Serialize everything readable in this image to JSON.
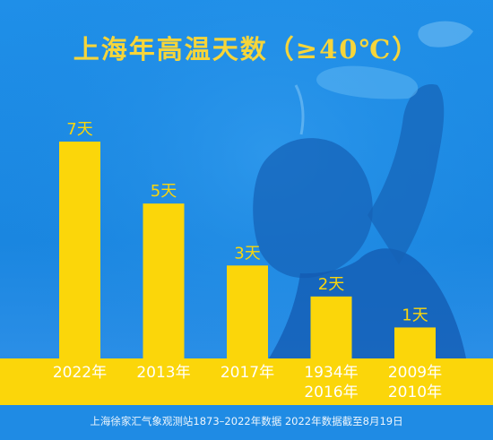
{
  "title": "上海年高温天数（≥40℃）",
  "footnote": "上海徐家汇气象观测站1873–2022年数据  2022年数据截至8月19日",
  "colors": {
    "bar": "#fbd60a",
    "background": "#1a88e0",
    "ground": "#fbd60a",
    "label": "#ffffff",
    "value_label": "#fbd60a"
  },
  "chart_data": {
    "type": "bar",
    "title": "上海年高温天数（≥40℃）",
    "categories": [
      [
        "2022年"
      ],
      [
        "2013年"
      ],
      [
        "2017年"
      ],
      [
        "1934年",
        "2016年"
      ],
      [
        "2009年",
        "2010年"
      ]
    ],
    "values": [
      7,
      5,
      3,
      2,
      1
    ],
    "value_labels": [
      "7天",
      "5天",
      "3天",
      "2天",
      "1天"
    ],
    "unit": "天",
    "ylim": [
      0,
      7
    ],
    "grid": false,
    "legend": "none"
  }
}
